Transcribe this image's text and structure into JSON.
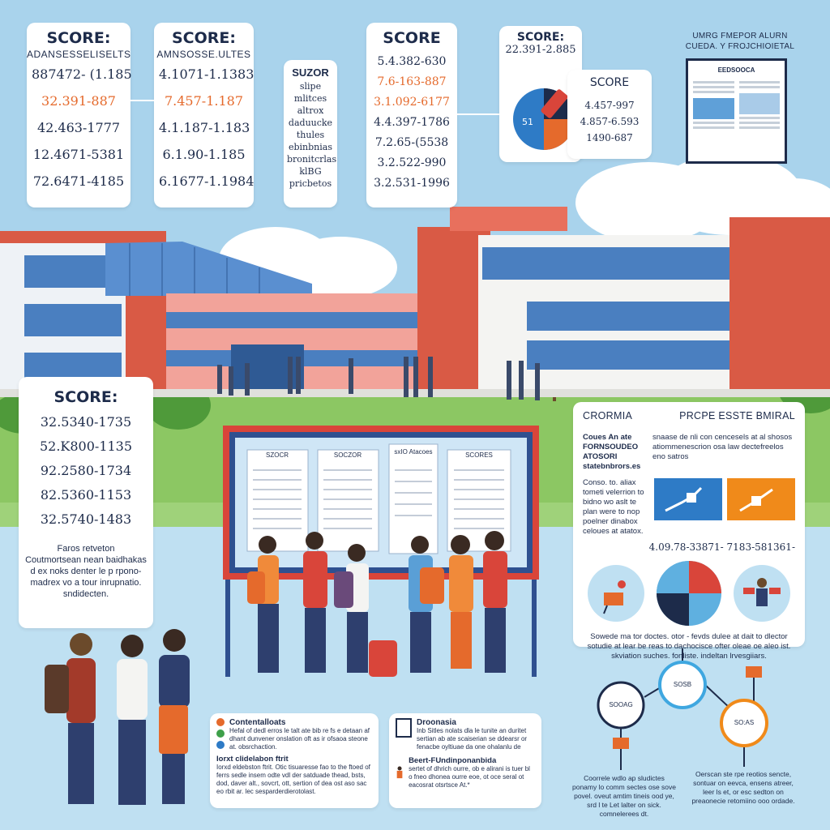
{
  "score_cards": [
    {
      "title": "SCORE:",
      "subtitle": "ADANSESSELISELTS",
      "rows": [
        "887472- (1.185",
        "32.391-887",
        "42.463-1777",
        "12.4671-5381",
        "72.6471-4185"
      ],
      "highlight_index": 1
    },
    {
      "title": "SCORE:",
      "subtitle": "AMNSOSSE.ULTES",
      "rows": [
        "4.1071-1.1383",
        "7.457-1.187",
        "4.1.187-1.183",
        "6.1.90-1.185",
        "6.1677-1.1984"
      ],
      "highlight_index": 1
    },
    {
      "title": "SCORE",
      "subtitle": "",
      "rows": [
        "5.4.382-630",
        "7.6-163-887",
        "3.1.092-6177",
        "4.4.397-1786",
        "7.2.65-(5538",
        "3.2.522-990",
        "3.2.531-1996"
      ],
      "highlight_index": 1
    },
    {
      "title": "SCORE:",
      "subtitle": "",
      "rows": [
        "32.5340-1735",
        "52.K800-1135",
        "92.2580-1734",
        "82.5360-1153",
        "32.5740-1483"
      ],
      "highlight_index": -1
    }
  ],
  "subject_note": {
    "title": "SUZOR",
    "lines": [
      "slipe",
      "mlitces",
      "altrox",
      "daduucke",
      "thules",
      "ebinbnias",
      "bronitcrlas",
      "klBG",
      "pricbetos"
    ]
  },
  "pie_score_card": {
    "title": "SCORE:",
    "subtitle": "22.391-2.885",
    "inner_title": "SCORE",
    "rows": [
      "4.457-997",
      "4.857-6.593",
      "1490-687"
    ],
    "pie_label": "51"
  },
  "document": {
    "title": "UMRG FMEPOR ALURN CUEDA. Y FROJCHIOIETAL",
    "header": "EEDSOOCA"
  },
  "notice_board": {
    "tabs": [
      "SZOCR",
      "SOCZOR",
      "sxIO Atacoes",
      "SCORES"
    ]
  },
  "left_note": {
    "lines": [
      "Faros retveton",
      "Coutmortsean nean baidhakas",
      "d ex noks denter le p rpono-",
      "madrex vo a tour inrupnatio.",
      "sndidecten."
    ]
  },
  "right_panel": {
    "tab_left": "CRORMIA",
    "tab_right": "PRCPE ESSTE BMIRAL",
    "intro_title": "Coues An ate FORNSOUDEO ATOSORI",
    "intro_sub": "statebnbrors.es",
    "intro_body": "snaase de nli con cencesels at al shosos atiommenescrion osa law dectefreelos eno satros",
    "side_text": "Conso. to. aliax tometi velerrion to bidno wo aslt te plan were to nop poelner dinabox celoues at atatox.",
    "numbers": "4.09.78-33871- 7183-581361-",
    "footer": "Sowede ma tor doctes. otor - fevds dulee at dait to dlector sotudie at lear be reas to dachocisce ofter oleae oe aleo ist. skviation suches. fonliste. indeltan lrvesgiiars."
  },
  "info_cards": [
    {
      "title": "Contentalloats",
      "body": "Hefal of dedl erros le talt ate bib re fs e detaan af dhant dunvener onslation oft as ir ofsaoa steone at. obsrchaction.",
      "title2": "Iorxt clidelabon ftrit",
      "body2": "Iorxd eldebston ftrit. Otic tisuaresse fao to the ftoed of ferrs sedle insem odte vdl der satduade thead, bsts, dod, daver alt., sovcrt, ott, sertion of dea ost aso sac eo rbit ar. lec sesparderdierotolast."
    },
    {
      "title": "Droonasia",
      "body": "Inb Sitles nolats dla le tunite an duritet sertian ab ate scaiserian se ddearsr or fenacbe oyltiuae da one ohalanlu de",
      "title2": "Beert-FUndinponanbida",
      "body2": "sertet of dhrich ourre, ob e alirani is tuer bl o fneo dhonea ourre eoe, ot oce seral ot eacosrat otsrtsce At.*"
    }
  ],
  "flow": {
    "nodes": [
      "SOOAG",
      "SOSB",
      "SO:AS"
    ],
    "caption_left": "Coorrele wdlo ap sludictes ponamy lo comm sectes ose sove povel. oveut amtim tineis ood ye, srd l te Let lalter on sick. comnelerees dt.",
    "caption_right": "Oerscan ste rpe reotios sencte, sontuar on eevca, ensens atreer, leer ls et, or esc sedton on preaonecie retomiino ooo ordade."
  },
  "colors": {
    "sky": "#a9d3ec",
    "navy": "#1d2b4a",
    "orange": "#e56a2c",
    "brick": "#d95a45",
    "blue": "#2e7bc6",
    "light_blue": "#5fb0e0",
    "grass": "#8cc763"
  }
}
